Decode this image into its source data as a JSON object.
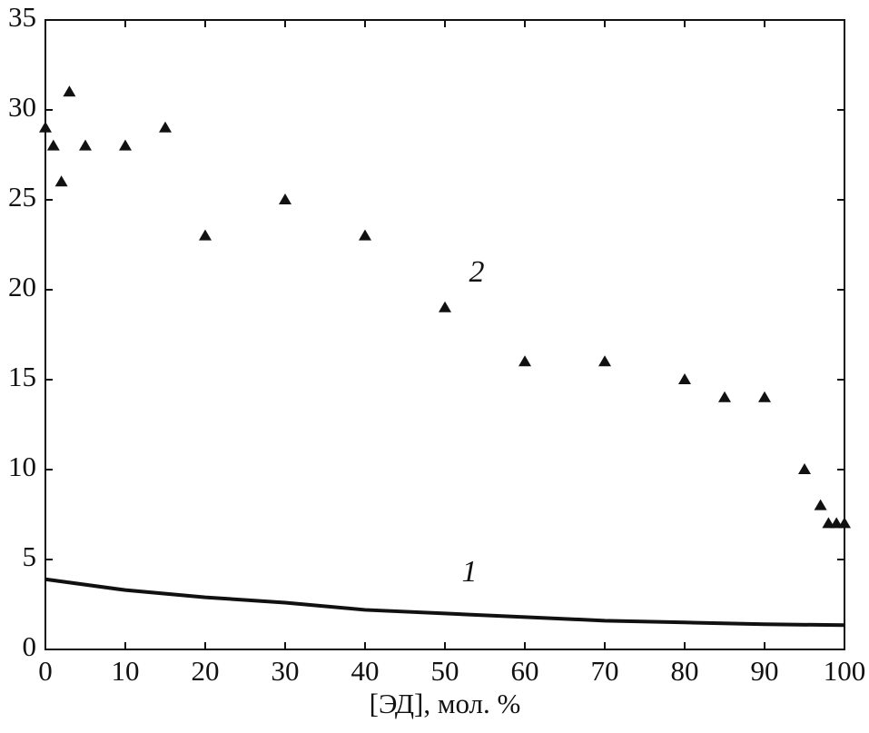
{
  "chart_data": {
    "type": "line",
    "xlabel": "[ЭД], мол. %",
    "annotations": [
      "2",
      "1"
    ],
    "xlim": [
      0,
      100
    ],
    "xticks": [
      0,
      10,
      20,
      30,
      40,
      50,
      60,
      70,
      80,
      90,
      100
    ],
    "ylim": [
      0,
      35
    ],
    "yticks": [
      0,
      5,
      10,
      15,
      20,
      25,
      30,
      35
    ],
    "grid": false,
    "series": [
      {
        "style": "marker",
        "color": "#111111",
        "x": [
          0,
          1,
          2,
          3,
          5,
          10,
          15,
          20,
          30,
          40,
          50,
          60,
          70,
          80,
          85,
          90,
          95,
          97,
          98,
          99,
          100
        ],
        "values": [
          29,
          28,
          26,
          31,
          28,
          28,
          29,
          23,
          25,
          23,
          19,
          16,
          16,
          15,
          14,
          14,
          10,
          8,
          7,
          7,
          7
        ]
      },
      {
        "style": "line",
        "color": "#111111",
        "x": [
          0,
          10,
          20,
          30,
          40,
          50,
          60,
          70,
          80,
          90,
          100
        ],
        "values": [
          3.9,
          3.3,
          2.9,
          2.6,
          2.2,
          2.0,
          1.8,
          1.6,
          1.5,
          1.4,
          1.35
        ]
      }
    ]
  }
}
